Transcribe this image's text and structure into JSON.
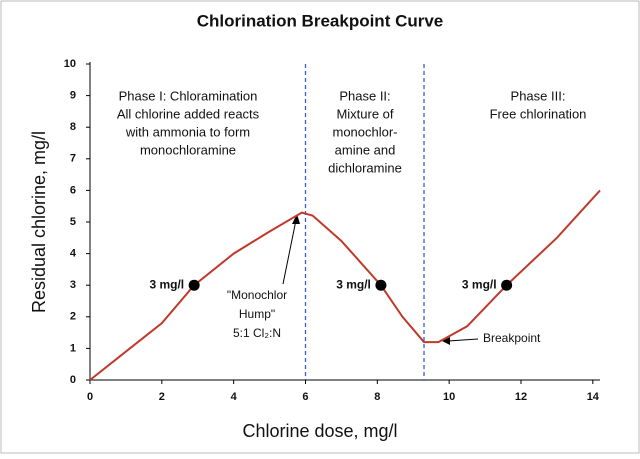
{
  "chart_data": {
    "type": "line",
    "title": "Chlorination Breakpoint Curve",
    "x_label": "Chlorine dose, mg/l",
    "y_label": "Residual chlorine, mg/l",
    "x": [
      0,
      1,
      2,
      2.9,
      4,
      5,
      5.9,
      6.2,
      7,
      8.1,
      8.7,
      9.3,
      9.7,
      10.5,
      11.6,
      13,
      14.2
    ],
    "values": [
      0,
      0.9,
      1.8,
      3,
      4,
      4.7,
      5.3,
      5.2,
      4.4,
      3,
      2,
      1.2,
      1.2,
      1.7,
      3,
      4.5,
      6
    ],
    "color": "#c0392b",
    "points": {
      "x": [
        2.9,
        8.1,
        11.6
      ],
      "values": [
        3,
        3,
        3
      ],
      "labels": [
        "3 mg/l",
        "3 mg/l",
        "3 mg/l"
      ]
    },
    "vlines": [
      6,
      9.3
    ],
    "vline_color": "#3b5bdb",
    "xlim": [
      0,
      14.2
    ],
    "ylim": [
      0,
      10
    ],
    "xticks": [
      0,
      2,
      4,
      6,
      8,
      10,
      12,
      14
    ],
    "yticks": [
      0,
      1,
      2,
      3,
      4,
      5,
      6,
      7,
      8,
      9,
      10
    ],
    "phases": [
      [
        "Phase I: Chloramination",
        "All chlorine added  reacts",
        "with ammonia to form",
        "monochloramine"
      ],
      [
        "Phase II:",
        "Mixture of",
        "monochlor-",
        "amine and",
        "dichloramine"
      ],
      [
        "Phase III:",
        "Free chlorination"
      ]
    ],
    "hump": [
      "\"Monochlor",
      "Hump\"",
      "5:1 Cl₂:N"
    ],
    "breakpoint": "Breakpoint"
  }
}
